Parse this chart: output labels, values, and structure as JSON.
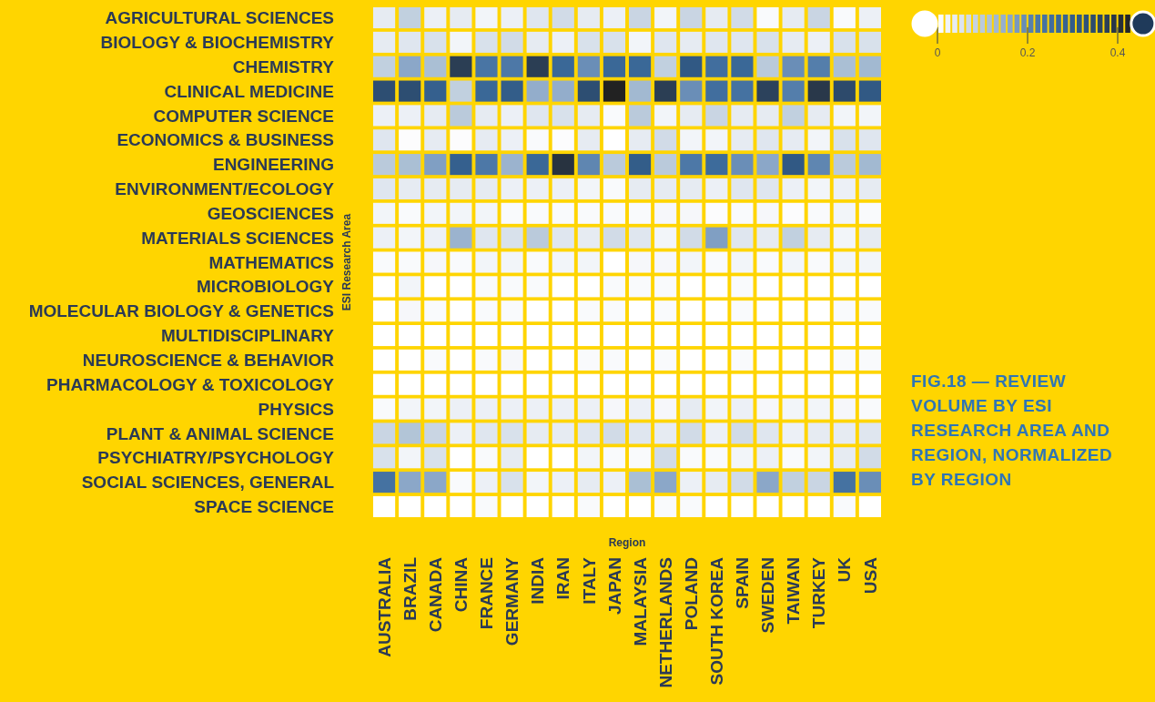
{
  "chart_data": {
    "type": "heatmap",
    "title": "FIG.18 — REVIEW VOLUME BY ESI RESEARCH AREA AND REGION, NORMALIZED BY REGION",
    "xlabel": "Region",
    "ylabel": "ESI Research Area",
    "categories": [
      "AUSTRALIA",
      "BRAZIL",
      "CANADA",
      "CHINA",
      "FRANCE",
      "GERMANY",
      "INDIA",
      "IRAN",
      "ITALY",
      "JAPAN",
      "MALAYSIA",
      "NETHERLANDS",
      "POLAND",
      "SOUTH KOREA",
      "SPAIN",
      "SWEDEN",
      "TAIWAN",
      "TURKEY",
      "UK",
      "USA"
    ],
    "y_categories": [
      "AGRICULTURAL SCIENCES",
      "BIOLOGY & BIOCHEMISTRY",
      "CHEMISTRY",
      "CLINICAL MEDICINE",
      "COMPUTER SCIENCE",
      "ECONOMICS & BUSINESS",
      "ENGINEERING",
      "ENVIRONMENT/ECOLOGY",
      "GEOSCIENCES",
      "MATERIALS SCIENCES",
      "MATHEMATICS",
      "MICROBIOLOGY",
      "MOLECULAR BIOLOGY & GENETICS",
      "MULTIDISCIPLINARY",
      "NEUROSCIENCE & BEHAVIOR",
      "PHARMACOLOGY & TOXICOLOGY",
      "PHYSICS",
      "PLANT & ANIMAL SCIENCE",
      "PSYCHIATRY/PSYCHOLOGY",
      "SOCIAL SCIENCES, GENERAL",
      "SPACE SCIENCE"
    ],
    "cells": [
      [
        0.04,
        0.09,
        0.03,
        0.04,
        0.02,
        0.03,
        0.05,
        0.07,
        0.04,
        0.03,
        0.08,
        0.02,
        0.08,
        0.04,
        0.07,
        0.01,
        0.04,
        0.08,
        0.01,
        0.03
      ],
      [
        0.04,
        0.05,
        0.06,
        0.02,
        0.06,
        0.07,
        0.04,
        0.03,
        0.06,
        0.06,
        0.02,
        0.05,
        0.04,
        0.05,
        0.05,
        0.06,
        0.04,
        0.03,
        0.06,
        0.06
      ],
      [
        0.09,
        0.16,
        0.12,
        0.38,
        0.23,
        0.22,
        0.38,
        0.27,
        0.19,
        0.27,
        0.27,
        0.09,
        0.31,
        0.25,
        0.27,
        0.1,
        0.19,
        0.21,
        0.12,
        0.13
      ],
      [
        0.34,
        0.34,
        0.29,
        0.09,
        0.27,
        0.3,
        0.15,
        0.15,
        0.34,
        0.43,
        0.13,
        0.38,
        0.19,
        0.25,
        0.24,
        0.37,
        0.21,
        0.39,
        0.35,
        0.31
      ],
      [
        0.03,
        0.03,
        0.04,
        0.1,
        0.04,
        0.03,
        0.05,
        0.06,
        0.04,
        0.01,
        0.1,
        0.02,
        0.04,
        0.08,
        0.04,
        0.04,
        0.09,
        0.04,
        0.02,
        0.02
      ],
      [
        0.05,
        0.005,
        0.04,
        0.005,
        0.04,
        0.03,
        0.01,
        0.005,
        0.04,
        0,
        0.04,
        0.07,
        0.02,
        0.02,
        0.04,
        0.05,
        0.04,
        0.02,
        0.06,
        0.05
      ],
      [
        0.1,
        0.12,
        0.17,
        0.29,
        0.22,
        0.14,
        0.27,
        0.4,
        0.2,
        0.1,
        0.3,
        0.1,
        0.22,
        0.26,
        0.19,
        0.16,
        0.31,
        0.2,
        0.1,
        0.13
      ],
      [
        0.05,
        0.04,
        0.04,
        0.04,
        0.04,
        0.03,
        0.03,
        0.03,
        0.02,
        0.01,
        0.04,
        0.04,
        0.04,
        0.03,
        0.05,
        0.05,
        0.03,
        0.02,
        0.03,
        0.04
      ],
      [
        0.02,
        0.01,
        0.02,
        0.02,
        0.02,
        0.01,
        0.01,
        0.01,
        0.01,
        0.01,
        0.01,
        0.015,
        0.015,
        0.005,
        0.01,
        0.015,
        0.005,
        0.01,
        0.02,
        0.01
      ],
      [
        0.03,
        0.02,
        0.03,
        0.14,
        0.05,
        0.06,
        0.1,
        0.05,
        0.04,
        0.07,
        0.05,
        0.02,
        0.07,
        0.17,
        0.05,
        0.04,
        0.09,
        0.04,
        0.02,
        0.04
      ],
      [
        0.01,
        0.01,
        0.015,
        0.01,
        0.02,
        0.02,
        0.01,
        0.02,
        0.02,
        0,
        0.015,
        0.015,
        0.02,
        0.01,
        0.02,
        0.01,
        0.02,
        0.01,
        0.02,
        0.02
      ],
      [
        0,
        0.02,
        0,
        0,
        0.01,
        0.01,
        0.01,
        0,
        0,
        0.01,
        0.01,
        0.01,
        0,
        0,
        0.01,
        0,
        0,
        0,
        0,
        0
      ],
      [
        0,
        0.015,
        0.01,
        0,
        0.01,
        0.01,
        0,
        0,
        0.01,
        0.01,
        0,
        0.01,
        0,
        0,
        0.01,
        0,
        0,
        0,
        0.01,
        0.01
      ],
      [
        0,
        0,
        0,
        0,
        0,
        0,
        0,
        0,
        0,
        0,
        0,
        0,
        0,
        0,
        0,
        0,
        0,
        0,
        0,
        0
      ],
      [
        0,
        0,
        0.01,
        0,
        0.01,
        0.015,
        0,
        0,
        0.01,
        0.01,
        0,
        0.01,
        0,
        0,
        0.01,
        0,
        0,
        0,
        0.01,
        0.01
      ],
      [
        0,
        0,
        0,
        0,
        0,
        0,
        0,
        0,
        0,
        0,
        0,
        0,
        0,
        0,
        0,
        0,
        0,
        0,
        0,
        0
      ],
      [
        0.01,
        0.02,
        0.02,
        0.03,
        0.03,
        0.03,
        0.03,
        0.03,
        0.03,
        0.015,
        0.03,
        0.015,
        0.04,
        0.02,
        0.03,
        0.015,
        0.02,
        0.02,
        0.015,
        0.01
      ],
      [
        0.08,
        0.11,
        0.08,
        0.03,
        0.05,
        0.06,
        0.04,
        0.04,
        0.05,
        0.07,
        0.05,
        0.04,
        0.07,
        0.03,
        0.07,
        0.05,
        0.03,
        0.04,
        0.04,
        0.05
      ],
      [
        0.06,
        0.02,
        0.06,
        0,
        0.01,
        0.04,
        0,
        0,
        0.02,
        0.01,
        0.01,
        0.07,
        0.01,
        0.01,
        0.02,
        0.03,
        0.01,
        0.02,
        0.04,
        0.07
      ],
      [
        0.24,
        0.16,
        0.16,
        0.01,
        0.03,
        0.06,
        0.02,
        0.03,
        0.04,
        0.03,
        0.12,
        0.16,
        0.03,
        0.04,
        0.07,
        0.16,
        0.09,
        0.08,
        0.24,
        0.19
      ],
      [
        0,
        0,
        0,
        0,
        0.01,
        0,
        0,
        0,
        0.01,
        0,
        0,
        0.01,
        0.01,
        0,
        0,
        0,
        0,
        0,
        0.01,
        0
      ]
    ],
    "clim": [
      0,
      0.43
    ],
    "cticks": [
      0,
      0.2,
      0.4
    ]
  }
}
